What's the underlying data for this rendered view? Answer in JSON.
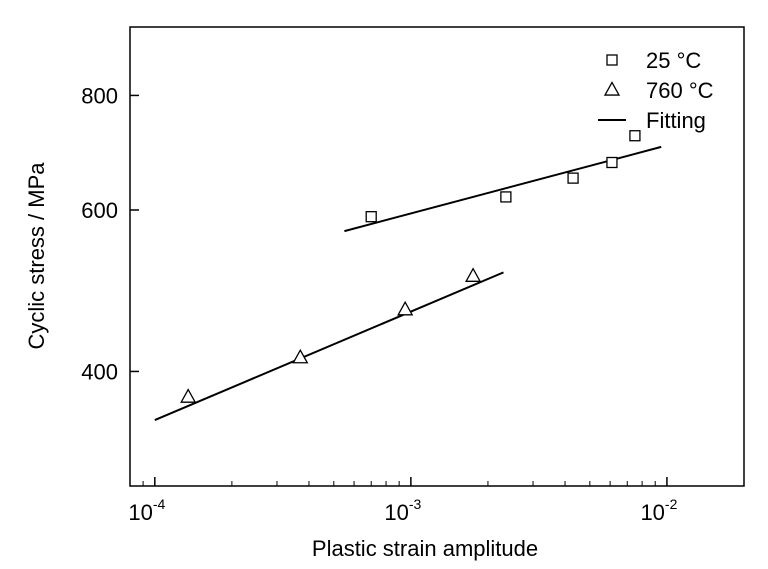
{
  "chart_data": {
    "type": "scatter",
    "title": "",
    "xlabel": "Plastic strain amplitude",
    "ylabel": "Cyclic stress / MPa",
    "xscale": "log",
    "yscale": "log",
    "xlim": [
      8e-05,
      0.02
    ],
    "ylim": [
      300,
      950
    ],
    "x_ticks": [
      {
        "value": 0.0001,
        "base": "10",
        "exp": "-4"
      },
      {
        "value": 0.001,
        "base": "10",
        "exp": "-3"
      },
      {
        "value": 0.01,
        "base": "10",
        "exp": "-2"
      }
    ],
    "y_ticks": [
      {
        "value": 400,
        "label": "400"
      },
      {
        "value": 600,
        "label": "600"
      },
      {
        "value": 800,
        "label": "800"
      }
    ],
    "grid": false,
    "legend_position": "top-right",
    "series": [
      {
        "name": "25 °C",
        "marker": "square",
        "points": [
          {
            "x": 0.0007,
            "y": 590
          },
          {
            "x": 0.00235,
            "y": 620
          },
          {
            "x": 0.0043,
            "y": 650
          },
          {
            "x": 0.0061,
            "y": 676
          },
          {
            "x": 0.0075,
            "y": 723
          }
        ]
      },
      {
        "name": "760 °C",
        "marker": "triangle",
        "points": [
          {
            "x": 0.000135,
            "y": 375
          },
          {
            "x": 0.00037,
            "y": 414
          },
          {
            "x": 0.00095,
            "y": 467
          },
          {
            "x": 0.00175,
            "y": 508
          }
        ]
      }
    ],
    "fits": [
      {
        "name": "Fitting",
        "points": [
          {
            "x": 0.00055,
            "y": 569
          },
          {
            "x": 0.0095,
            "y": 703
          }
        ]
      },
      {
        "name": "Fitting",
        "points": [
          {
            "x": 0.0001,
            "y": 354
          },
          {
            "x": 0.0023,
            "y": 513
          }
        ]
      }
    ],
    "legend": [
      {
        "label": "25 °C",
        "symbol": "square"
      },
      {
        "label": "760 °C",
        "symbol": "triangle"
      },
      {
        "label": "Fitting",
        "symbol": "line"
      }
    ]
  }
}
